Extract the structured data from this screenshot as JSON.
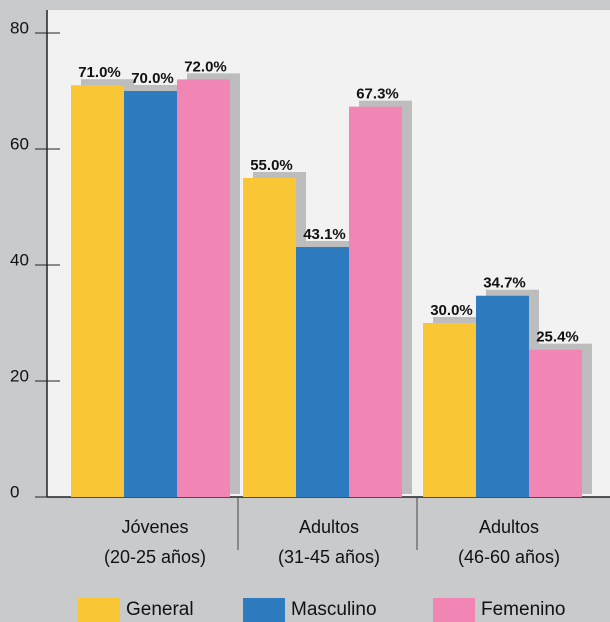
{
  "chart_data": {
    "type": "bar",
    "categories": [
      [
        "Jóvenes",
        "(20-25 años)"
      ],
      [
        "Adultos",
        "(31-45 años)"
      ],
      [
        "Adultos",
        "(46-60 años)"
      ]
    ],
    "series": [
      {
        "name": "General",
        "color": "#f9c735",
        "values": [
          71.0,
          55.0,
          30.0
        ],
        "value_labels": [
          "71.0%",
          "55.0%",
          "30.0%"
        ]
      },
      {
        "name": "Masculino",
        "color": "#2e7bc0",
        "values": [
          70.0,
          43.1,
          34.7
        ],
        "value_labels": [
          "70.0%",
          "43.1%",
          "34.7%"
        ]
      },
      {
        "name": "Femenino",
        "color": "#f185b3",
        "values": [
          72.0,
          67.3,
          25.4
        ],
        "value_labels": [
          "72.0%",
          "67.3%",
          "25.4%"
        ]
      }
    ],
    "ylim": [
      0,
      80
    ],
    "yticks": [
      0,
      20,
      40,
      60,
      80
    ],
    "grid": false,
    "legend": "bottom"
  }
}
